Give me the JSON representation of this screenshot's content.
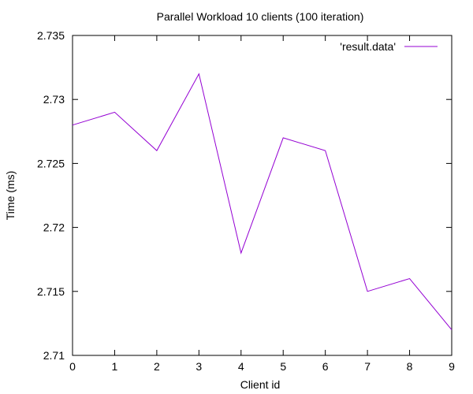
{
  "chart_data": {
    "type": "line",
    "title": "Parallel Workload 10 clients (100 iteration)",
    "xlabel": "Client id",
    "ylabel": "Time (ms)",
    "xlim": [
      0,
      9
    ],
    "ylim": [
      2.71,
      2.735
    ],
    "xticks": [
      "0",
      "1",
      "2",
      "3",
      "4",
      "5",
      "6",
      "7",
      "8",
      "9"
    ],
    "yticks": [
      "2.71",
      "2.715",
      "2.72",
      "2.725",
      "2.73",
      "2.735"
    ],
    "grid": false,
    "legend_position": "top-right",
    "series": [
      {
        "name": "'result.data'",
        "color": "#9400d3",
        "x": [
          0,
          1,
          2,
          3,
          4,
          5,
          6,
          7,
          8,
          9
        ],
        "y": [
          2.728,
          2.729,
          2.726,
          2.732,
          2.718,
          2.727,
          2.726,
          2.715,
          2.716,
          2.712
        ]
      }
    ]
  }
}
